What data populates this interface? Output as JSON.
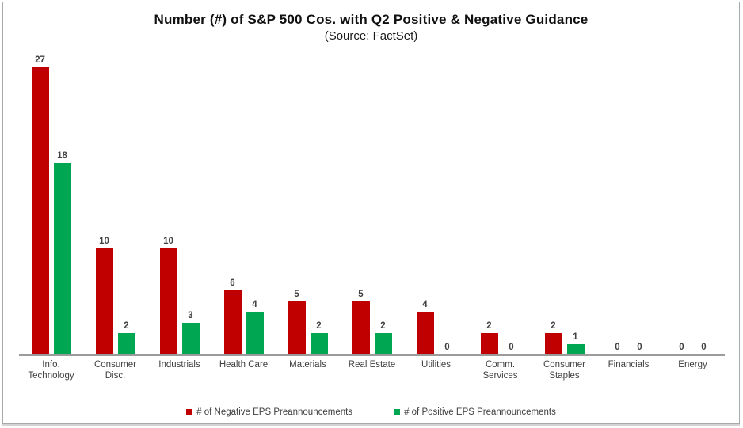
{
  "chart_data": {
    "type": "bar",
    "title": "Number (#) of S&P 500 Cos. with Q2 Positive & Negative Guidance",
    "subtitle": "(Source: FactSet)",
    "categories": [
      "Info.\nTechnology",
      "Consumer\nDisc.",
      "Industrials",
      "Health Care",
      "Materials",
      "Real Estate",
      "Utilities",
      "Comm.\nServices",
      "Consumer\nStaples",
      "Financials",
      "Energy"
    ],
    "series": [
      {
        "name": "# of Negative EPS Preannouncements",
        "color": "#C00000",
        "values": [
          27,
          10,
          10,
          6,
          5,
          5,
          4,
          2,
          2,
          0,
          0
        ]
      },
      {
        "name": "# of Positive EPS Preannouncements",
        "color": "#00A651",
        "values": [
          18,
          2,
          3,
          4,
          2,
          2,
          0,
          0,
          1,
          0,
          0
        ]
      }
    ],
    "ylim": [
      0,
      27
    ],
    "grid": false,
    "data_labels": true,
    "legend_position": "bottom",
    "axis_line_color": "#9B9B9B",
    "label_text_color": "#3F3F3F"
  }
}
